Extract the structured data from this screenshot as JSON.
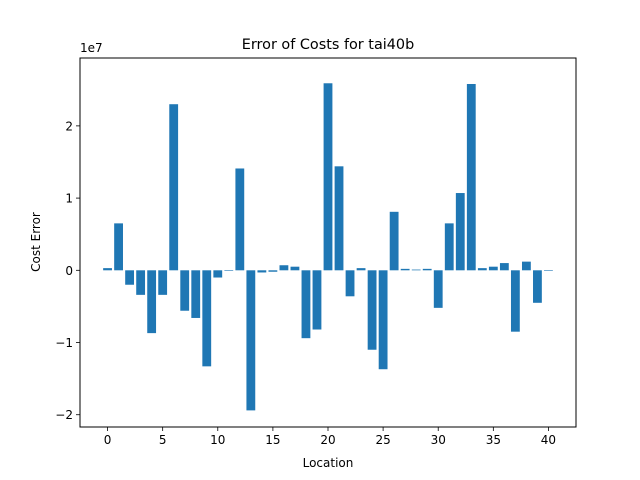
{
  "chart_data": {
    "type": "bar",
    "title": "Error of Costs for tai40b",
    "xlabel": "Location",
    "ylabel": "Cost Error",
    "y_offset_label": "1e7",
    "x_ticks": [
      0,
      5,
      10,
      15,
      20,
      25,
      30,
      35,
      40
    ],
    "y_ticks": [
      {
        "value": -2,
        "label": "−2"
      },
      {
        "value": -1,
        "label": "−1"
      },
      {
        "value": 0,
        "label": "0"
      },
      {
        "value": 1,
        "label": "1"
      },
      {
        "value": 2,
        "label": "2"
      }
    ],
    "xlim": [
      -2.5,
      42.5
    ],
    "ylim": [
      -2.17,
      2.94
    ],
    "y_scale": 10000000,
    "bar_color": "#1f77b4",
    "grid": false,
    "categories": [
      0,
      1,
      2,
      3,
      4,
      5,
      6,
      7,
      8,
      9,
      10,
      11,
      12,
      13,
      14,
      15,
      16,
      17,
      18,
      19,
      20,
      21,
      22,
      23,
      24,
      25,
      26,
      27,
      28,
      29,
      30,
      31,
      32,
      33,
      34,
      35,
      36,
      37,
      38,
      39,
      40
    ],
    "values": [
      0.03,
      0.65,
      -0.2,
      -0.34,
      -0.87,
      -0.34,
      2.3,
      -0.56,
      -0.66,
      -1.33,
      -0.1,
      0.0,
      1.41,
      -1.94,
      -0.03,
      -0.02,
      0.07,
      0.05,
      -0.94,
      -0.82,
      2.59,
      1.44,
      -0.36,
      0.03,
      -1.1,
      -1.37,
      0.81,
      0.02,
      0.01,
      0.02,
      -0.52,
      0.65,
      1.07,
      2.58,
      0.03,
      0.05,
      0.1,
      -0.85,
      0.12,
      -0.45,
      0.0
    ]
  }
}
